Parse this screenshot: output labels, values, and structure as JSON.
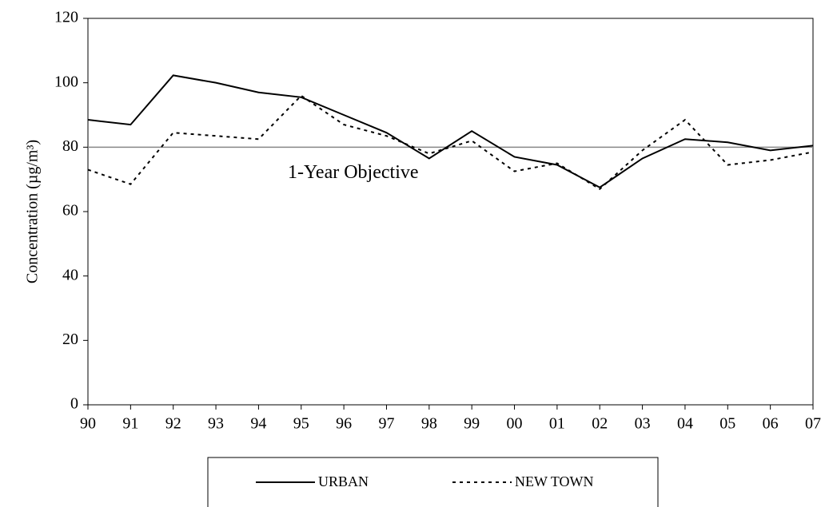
{
  "chart_data": {
    "type": "line",
    "y_label": "Concentration (µg/m³)",
    "categories": [
      "90",
      "91",
      "92",
      "93",
      "94",
      "95",
      "96",
      "97",
      "98",
      "99",
      "00",
      "01",
      "02",
      "03",
      "04",
      "05",
      "06",
      "07"
    ],
    "series": [
      {
        "name": "URBAN",
        "color": "#000000",
        "dash": "solid",
        "values": [
          88.5,
          87,
          102.3,
          100,
          97,
          95.5,
          90,
          84.5,
          76.5,
          85,
          77,
          74.5,
          67.5,
          76.5,
          82.5,
          81.5,
          79,
          80.5
        ]
      },
      {
        "name": "NEW TOWN",
        "color": "#000000",
        "dash": "dotted",
        "values": [
          73,
          68.5,
          84.5,
          83.5,
          82.5,
          96,
          87,
          83.5,
          78,
          82,
          72.5,
          75,
          67,
          79,
          88.5,
          74.5,
          76,
          78.5
        ]
      }
    ],
    "reference_line": {
      "value": 80,
      "label": "1-Year Objective",
      "color": "#888888"
    },
    "ylim": [
      0,
      120
    ],
    "yticks": [
      0,
      20,
      40,
      60,
      80,
      100,
      120
    ],
    "legend": "bottom"
  }
}
